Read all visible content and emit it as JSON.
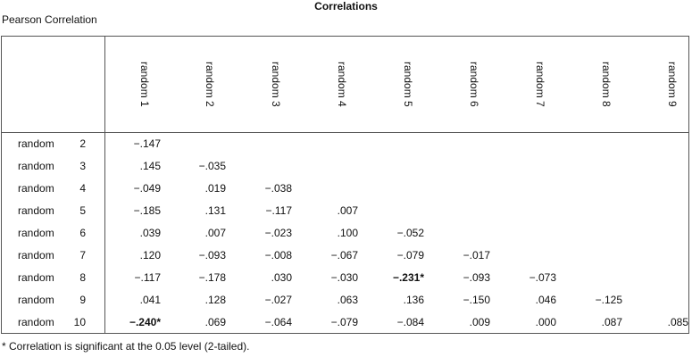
{
  "title": "Correlations",
  "subtitle": "Pearson Correlation",
  "columns": [
    "random 1",
    "random 2",
    "random 3",
    "random 4",
    "random 5",
    "random 6",
    "random 7",
    "random 8",
    "random 9"
  ],
  "rows": [
    {
      "word": "random",
      "num": "2",
      "cells": [
        "−.147"
      ]
    },
    {
      "word": "random",
      "num": "3",
      "cells": [
        ".145",
        "−.035"
      ]
    },
    {
      "word": "random",
      "num": "4",
      "cells": [
        "−.049",
        ".019",
        "−.038"
      ]
    },
    {
      "word": "random",
      "num": "5",
      "cells": [
        "−.185",
        ".131",
        "−.117",
        ".007"
      ]
    },
    {
      "word": "random",
      "num": "6",
      "cells": [
        ".039",
        ".007",
        "−.023",
        ".100",
        "−.052"
      ]
    },
    {
      "word": "random",
      "num": "7",
      "cells": [
        ".120",
        "−.093",
        "−.008",
        "−.067",
        "−.079",
        "−.017"
      ]
    },
    {
      "word": "random",
      "num": "8",
      "cells": [
        "−.117",
        "−.178",
        ".030",
        "−.030",
        "−.231*",
        "−.093",
        "−.073"
      ]
    },
    {
      "word": "random",
      "num": "9",
      "cells": [
        ".041",
        ".128",
        "−.027",
        ".063",
        ".136",
        "−.150",
        ".046",
        "−.125"
      ]
    },
    {
      "word": "random",
      "num": "10",
      "cells": [
        "−.240*",
        ".069",
        "−.064",
        "−.079",
        "−.084",
        ".009",
        ".000",
        ".087",
        ".085"
      ]
    }
  ],
  "footnote": "* Correlation is significant at the 0.05 level (2-tailed)."
}
